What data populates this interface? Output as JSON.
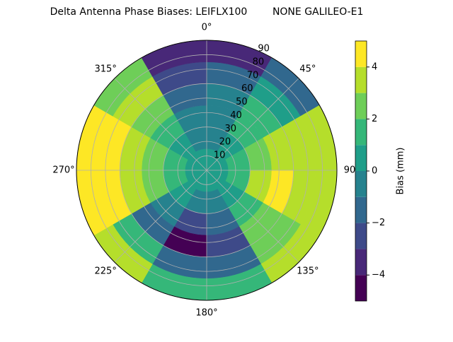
{
  "chart_data": {
    "type": "polar-contour",
    "title": "Delta Antenna Phase Biases: LEIFLX100        NONE GALILEO-E1",
    "azimuth": [
      15,
      45,
      75,
      105,
      135,
      165,
      195,
      225,
      255,
      285,
      315,
      345
    ],
    "zenith": [
      7.5,
      22.5,
      37.5,
      52.5,
      67.5,
      82.5
    ],
    "values": [
      [
        0,
        -1,
        -1,
        -1,
        -2,
        -4
      ],
      [
        0,
        0,
        1,
        1,
        0,
        -2
      ],
      [
        0,
        1,
        2,
        3,
        3,
        3
      ],
      [
        0,
        1,
        3,
        4,
        3,
        3
      ],
      [
        0,
        0,
        1,
        2,
        2,
        3
      ],
      [
        0,
        -1,
        -2,
        -3,
        -2,
        1
      ],
      [
        0,
        -1,
        -3,
        -5,
        -2,
        1
      ],
      [
        0,
        0,
        -1,
        -2,
        1,
        3
      ],
      [
        0,
        1,
        2,
        3,
        4,
        4
      ],
      [
        0,
        1,
        2,
        3,
        4,
        5
      ],
      [
        0,
        0,
        1,
        2,
        3,
        2
      ],
      [
        0,
        -1,
        -1,
        -2,
        -3,
        -4
      ]
    ],
    "xticks": [
      {
        "value": 0,
        "label": "0°"
      },
      {
        "value": 45,
        "label": "45°"
      },
      {
        "value": 90,
        "label": "90"
      },
      {
        "value": 135,
        "label": "135°"
      },
      {
        "value": 180,
        "label": "180°"
      },
      {
        "value": 225,
        "label": "225°"
      },
      {
        "value": 270,
        "label": "270°"
      },
      {
        "value": 315,
        "label": "315°"
      }
    ],
    "ylim": [
      0,
      90
    ],
    "yticks": [
      10,
      20,
      30,
      40,
      50,
      60,
      70,
      80,
      90
    ],
    "grid": true,
    "levels": [
      -5,
      -4,
      -3,
      -2,
      -1,
      0,
      1,
      2,
      3,
      4,
      5
    ],
    "colors": [
      "#440154",
      "#482878",
      "#3e4a89",
      "#31688e",
      "#26828e",
      "#1f9e89",
      "#35b779",
      "#6ece58",
      "#b5de2b",
      "#fde725"
    ],
    "colorbar_label": "Bias (mm)",
    "colorbar_ticks": [
      {
        "value": -4,
        "label": "−4"
      },
      {
        "value": -2,
        "label": "−2"
      },
      0,
      2,
      4
    ]
  }
}
